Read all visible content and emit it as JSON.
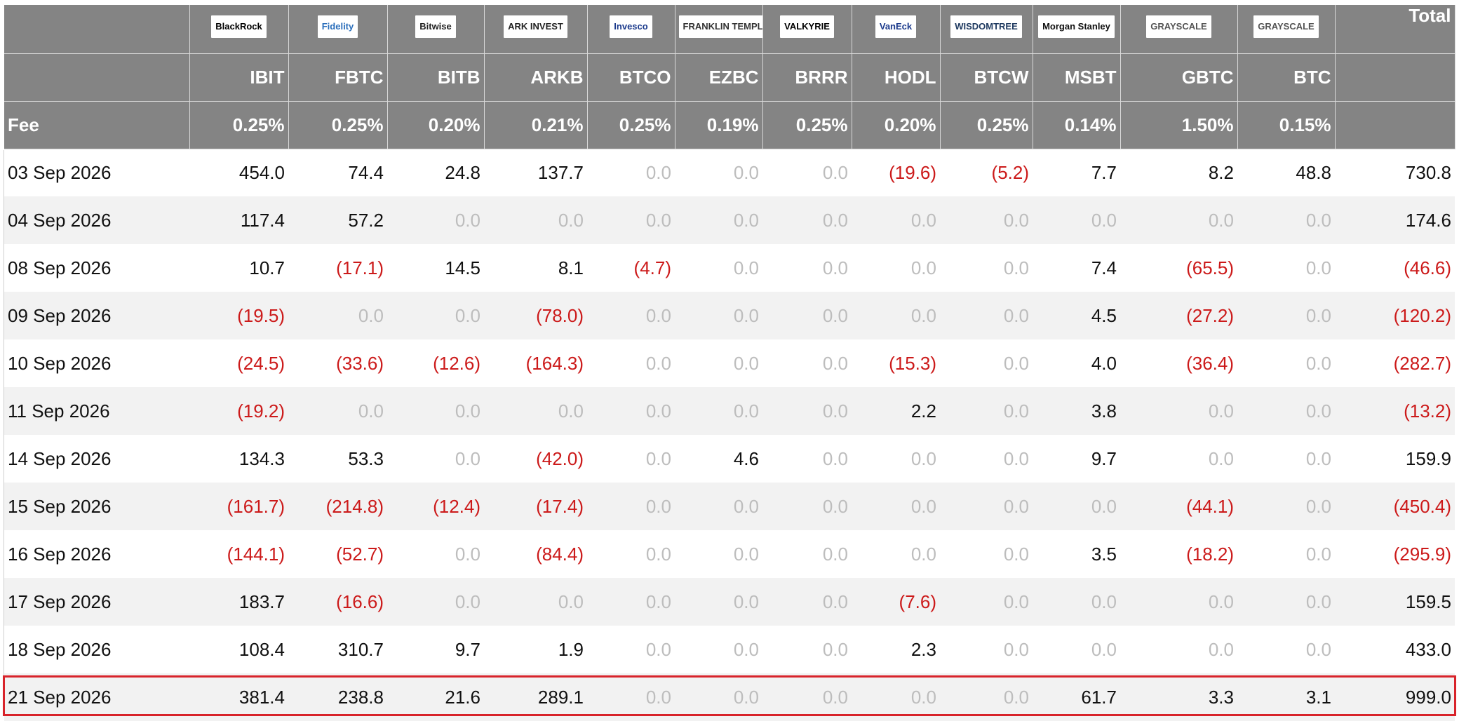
{
  "table": {
    "total_header": "Total",
    "fee_label": "Fee",
    "issuers": [
      {
        "logo": "BlackRock",
        "ticker": "IBIT",
        "fee": "0.25%",
        "logo_bg": "#ffffff",
        "logo_fg": "#000000"
      },
      {
        "logo": "Fidelity",
        "ticker": "FBTC",
        "fee": "0.25%",
        "logo_bg": "#ffffff",
        "logo_fg": "#2a6ebb"
      },
      {
        "logo": "Bitwise",
        "ticker": "BITB",
        "fee": "0.20%",
        "logo_bg": "#ffffff",
        "logo_fg": "#222222"
      },
      {
        "logo": "ARK INVEST",
        "ticker": "ARKB",
        "fee": "0.21%",
        "logo_bg": "#ffffff",
        "logo_fg": "#222222"
      },
      {
        "logo": "Invesco",
        "ticker": "BTCO",
        "fee": "0.25%",
        "logo_bg": "#ffffff",
        "logo_fg": "#1b3a8c"
      },
      {
        "logo": "FRANKLIN TEMPLETON",
        "ticker": "EZBC",
        "fee": "0.19%",
        "logo_bg": "#ffffff",
        "logo_fg": "#333333"
      },
      {
        "logo": "VALKYRIE",
        "ticker": "BRRR",
        "fee": "0.25%",
        "logo_bg": "#ffffff",
        "logo_fg": "#000000"
      },
      {
        "logo": "VanEck",
        "ticker": "HODL",
        "fee": "0.20%",
        "logo_bg": "#ffffff",
        "logo_fg": "#1b3a8c"
      },
      {
        "logo": "WISDOMTREE",
        "ticker": "BTCW",
        "fee": "0.25%",
        "logo_bg": "#ffffff",
        "logo_fg": "#1f3a60"
      },
      {
        "logo": "Morgan Stanley",
        "ticker": "MSBT",
        "fee": "0.14%",
        "logo_bg": "#ffffff",
        "logo_fg": "#111111"
      },
      {
        "logo": "GRAYSCALE",
        "ticker": "GBTC",
        "fee": "1.50%",
        "logo_bg": "#ffffff",
        "logo_fg": "#555555"
      },
      {
        "logo": "GRAYSCALE",
        "ticker": "BTC",
        "fee": "0.15%",
        "logo_bg": "#ffffff",
        "logo_fg": "#555555"
      }
    ],
    "rows": [
      {
        "date": "03 Sep 2026",
        "values": [
          "454.0",
          "74.4",
          "24.8",
          "137.7",
          "0.0",
          "0.0",
          "0.0",
          "(19.6)",
          "(5.2)",
          "7.7",
          "8.2",
          "48.8"
        ],
        "total": "730.8"
      },
      {
        "date": "04 Sep 2026",
        "values": [
          "117.4",
          "57.2",
          "0.0",
          "0.0",
          "0.0",
          "0.0",
          "0.0",
          "0.0",
          "0.0",
          "0.0",
          "0.0",
          "0.0"
        ],
        "total": "174.6"
      },
      {
        "date": "08 Sep 2026",
        "values": [
          "10.7",
          "(17.1)",
          "14.5",
          "8.1",
          "(4.7)",
          "0.0",
          "0.0",
          "0.0",
          "0.0",
          "7.4",
          "(65.5)",
          "0.0"
        ],
        "total": "(46.6)"
      },
      {
        "date": "09 Sep 2026",
        "values": [
          "(19.5)",
          "0.0",
          "0.0",
          "(78.0)",
          "0.0",
          "0.0",
          "0.0",
          "0.0",
          "0.0",
          "4.5",
          "(27.2)",
          "0.0"
        ],
        "total": "(120.2)"
      },
      {
        "date": "10 Sep 2026",
        "values": [
          "(24.5)",
          "(33.6)",
          "(12.6)",
          "(164.3)",
          "0.0",
          "0.0",
          "0.0",
          "(15.3)",
          "0.0",
          "4.0",
          "(36.4)",
          "0.0"
        ],
        "total": "(282.7)"
      },
      {
        "date": "11 Sep 2026",
        "values": [
          "(19.2)",
          "0.0",
          "0.0",
          "0.0",
          "0.0",
          "0.0",
          "0.0",
          "2.2",
          "0.0",
          "3.8",
          "0.0",
          "0.0"
        ],
        "total": "(13.2)"
      },
      {
        "date": "14 Sep 2026",
        "values": [
          "134.3",
          "53.3",
          "0.0",
          "(42.0)",
          "0.0",
          "4.6",
          "0.0",
          "0.0",
          "0.0",
          "9.7",
          "0.0",
          "0.0"
        ],
        "total": "159.9"
      },
      {
        "date": "15 Sep 2026",
        "values": [
          "(161.7)",
          "(214.8)",
          "(12.4)",
          "(17.4)",
          "0.0",
          "0.0",
          "0.0",
          "0.0",
          "0.0",
          "0.0",
          "(44.1)",
          "0.0"
        ],
        "total": "(450.4)"
      },
      {
        "date": "16 Sep 2026",
        "values": [
          "(144.1)",
          "(52.7)",
          "0.0",
          "(84.4)",
          "0.0",
          "0.0",
          "0.0",
          "0.0",
          "0.0",
          "3.5",
          "(18.2)",
          "0.0"
        ],
        "total": "(295.9)"
      },
      {
        "date": "17 Sep 2026",
        "values": [
          "183.7",
          "(16.6)",
          "0.0",
          "0.0",
          "0.0",
          "0.0",
          "0.0",
          "(7.6)",
          "0.0",
          "0.0",
          "0.0",
          "0.0"
        ],
        "total": "159.5"
      },
      {
        "date": "18 Sep 2026",
        "values": [
          "108.4",
          "310.7",
          "9.7",
          "1.9",
          "0.0",
          "0.0",
          "0.0",
          "2.3",
          "0.0",
          "0.0",
          "0.0",
          "0.0"
        ],
        "total": "433.0"
      },
      {
        "date": "21 Sep 2026",
        "values": [
          "381.4",
          "238.8",
          "21.6",
          "289.1",
          "0.0",
          "0.0",
          "0.0",
          "0.0",
          "0.0",
          "61.7",
          "3.3",
          "3.1"
        ],
        "total": "999.0"
      }
    ],
    "highlighted_row": "21 Sep 2026",
    "colors": {
      "header_bg": "#848484",
      "negative": "#cc1a1a",
      "zero": "#bdbdbd",
      "highlight_border": "#d8232a",
      "stripe": "#f2f2f2"
    }
  }
}
